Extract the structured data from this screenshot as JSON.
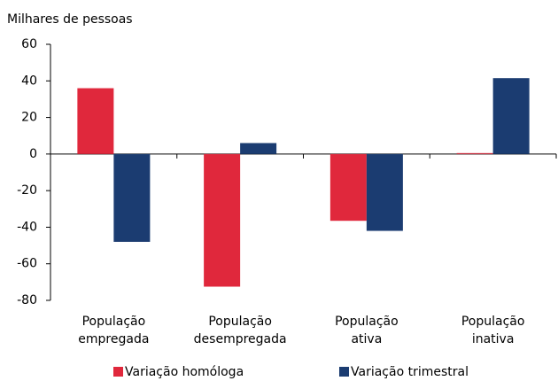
{
  "chart_data": {
    "type": "bar",
    "y_label": "Milhares de pessoas",
    "categories": [
      [
        "População",
        "empregada"
      ],
      [
        "População",
        "desempregada"
      ],
      [
        "População",
        "ativa"
      ],
      [
        "População",
        "inativa"
      ]
    ],
    "series": [
      {
        "name": "Variação homóloga",
        "color": "#e0283c",
        "values": [
          36,
          -72.5,
          -36.5,
          0.5
        ]
      },
      {
        "name": "Variação trimestral",
        "color": "#1b3c71",
        "values": [
          -48,
          6,
          -42,
          41.5
        ]
      }
    ],
    "ylim": [
      -80,
      60
    ],
    "yticks": [
      -80,
      -60,
      -40,
      -20,
      0,
      20,
      40,
      60
    ]
  }
}
